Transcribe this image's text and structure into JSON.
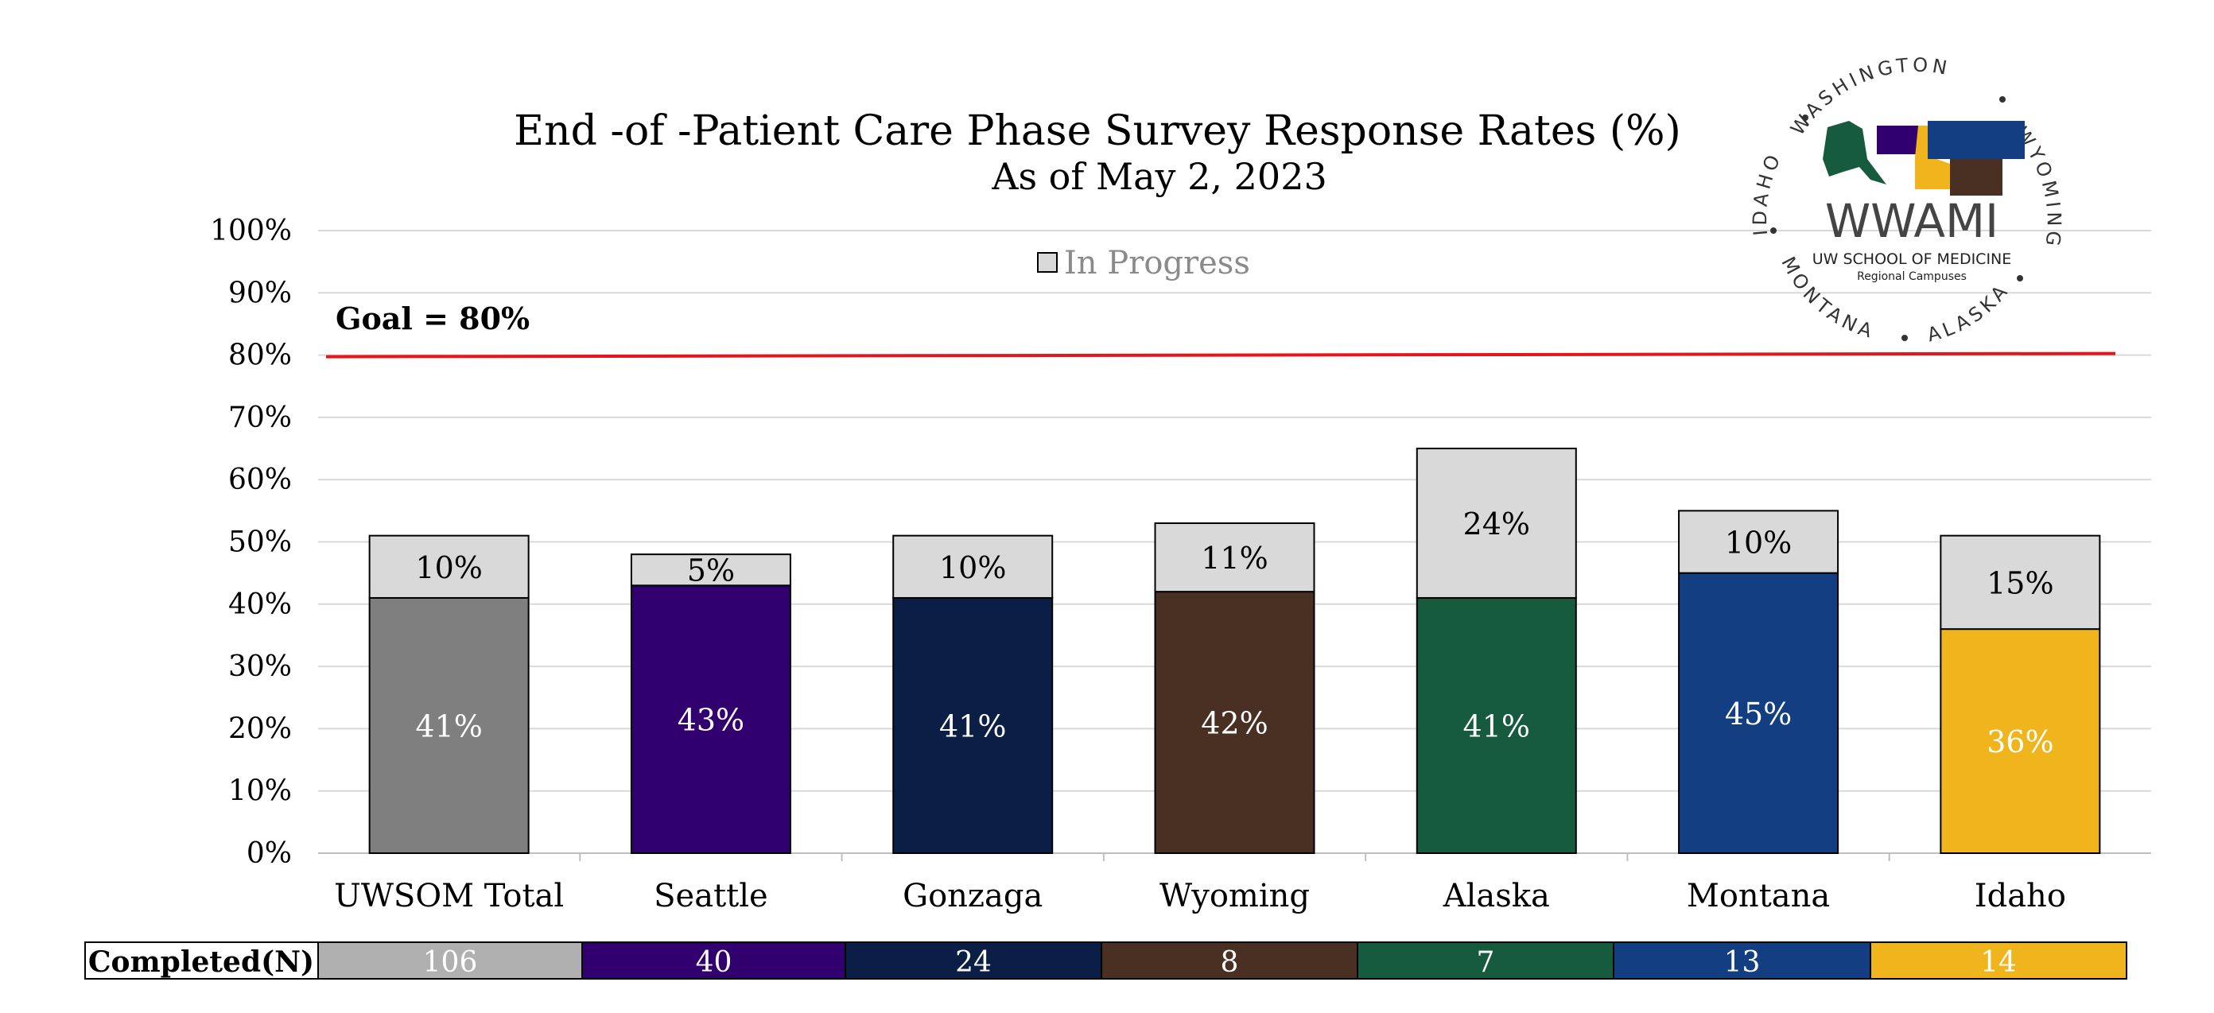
{
  "chart_data": {
    "type": "bar",
    "stacked": true,
    "title": "End -of -Patient Care Phase Survey Response Rates (%)",
    "subtitle": "As of May 2, 2023",
    "categories": [
      "UWSOM Total",
      "Seattle",
      "Gonzaga",
      "Wyoming",
      "Alaska",
      "Montana",
      "Idaho"
    ],
    "series": [
      {
        "values": [
          41,
          43,
          41,
          42,
          41,
          45,
          36
        ],
        "labels": [
          "41%",
          "43%",
          "41%",
          "42%",
          "41%",
          "45%",
          "36%"
        ],
        "colors": [
          "#7f7f7f",
          "#32006e",
          "#0b1e45",
          "#4a3022",
          "#175b3e",
          "#133f82",
          "#f0b41c"
        ]
      },
      {
        "name": "In Progress",
        "values": [
          10,
          5,
          10,
          11,
          24,
          10,
          15
        ],
        "labels": [
          "10%",
          "5%",
          "10%",
          "11%",
          "24%",
          "10%",
          "15%"
        ],
        "color": "#d9d9d9"
      }
    ],
    "ylim": [
      0,
      100
    ],
    "yticks": [
      "0%",
      "10%",
      "20%",
      "30%",
      "40%",
      "50%",
      "60%",
      "70%",
      "80%",
      "90%",
      "100%"
    ],
    "goal": {
      "value": 80,
      "label": "Goal = 80%",
      "color": "#e3161b"
    },
    "grid": true,
    "legend": "top-center",
    "completed_table": {
      "header": "Completed(N)",
      "values": [
        "106",
        "40",
        "24",
        "8",
        "7",
        "13",
        "14"
      ],
      "colors": [
        "#b0b0b0",
        "#32006e",
        "#0b1e45",
        "#4a3022",
        "#175b3e",
        "#133f82",
        "#f0b41c"
      ]
    }
  },
  "logo": {
    "wordmark": "WWAMI",
    "line1": "UW SCHOOL OF MEDICINE",
    "line2": "Regional Campuses",
    "ring_top": "WASHINGTON",
    "ring_right": "WYOMING",
    "ring_bottom_right": "ALASKA",
    "ring_bottom_left": "MONTANA",
    "ring_left": "IDAHO",
    "colors": {
      "washington": "#32006e",
      "alaska": "#175b3e",
      "idaho": "#f0b41c",
      "montana": "#133f82",
      "wyoming": "#4a3022"
    }
  }
}
